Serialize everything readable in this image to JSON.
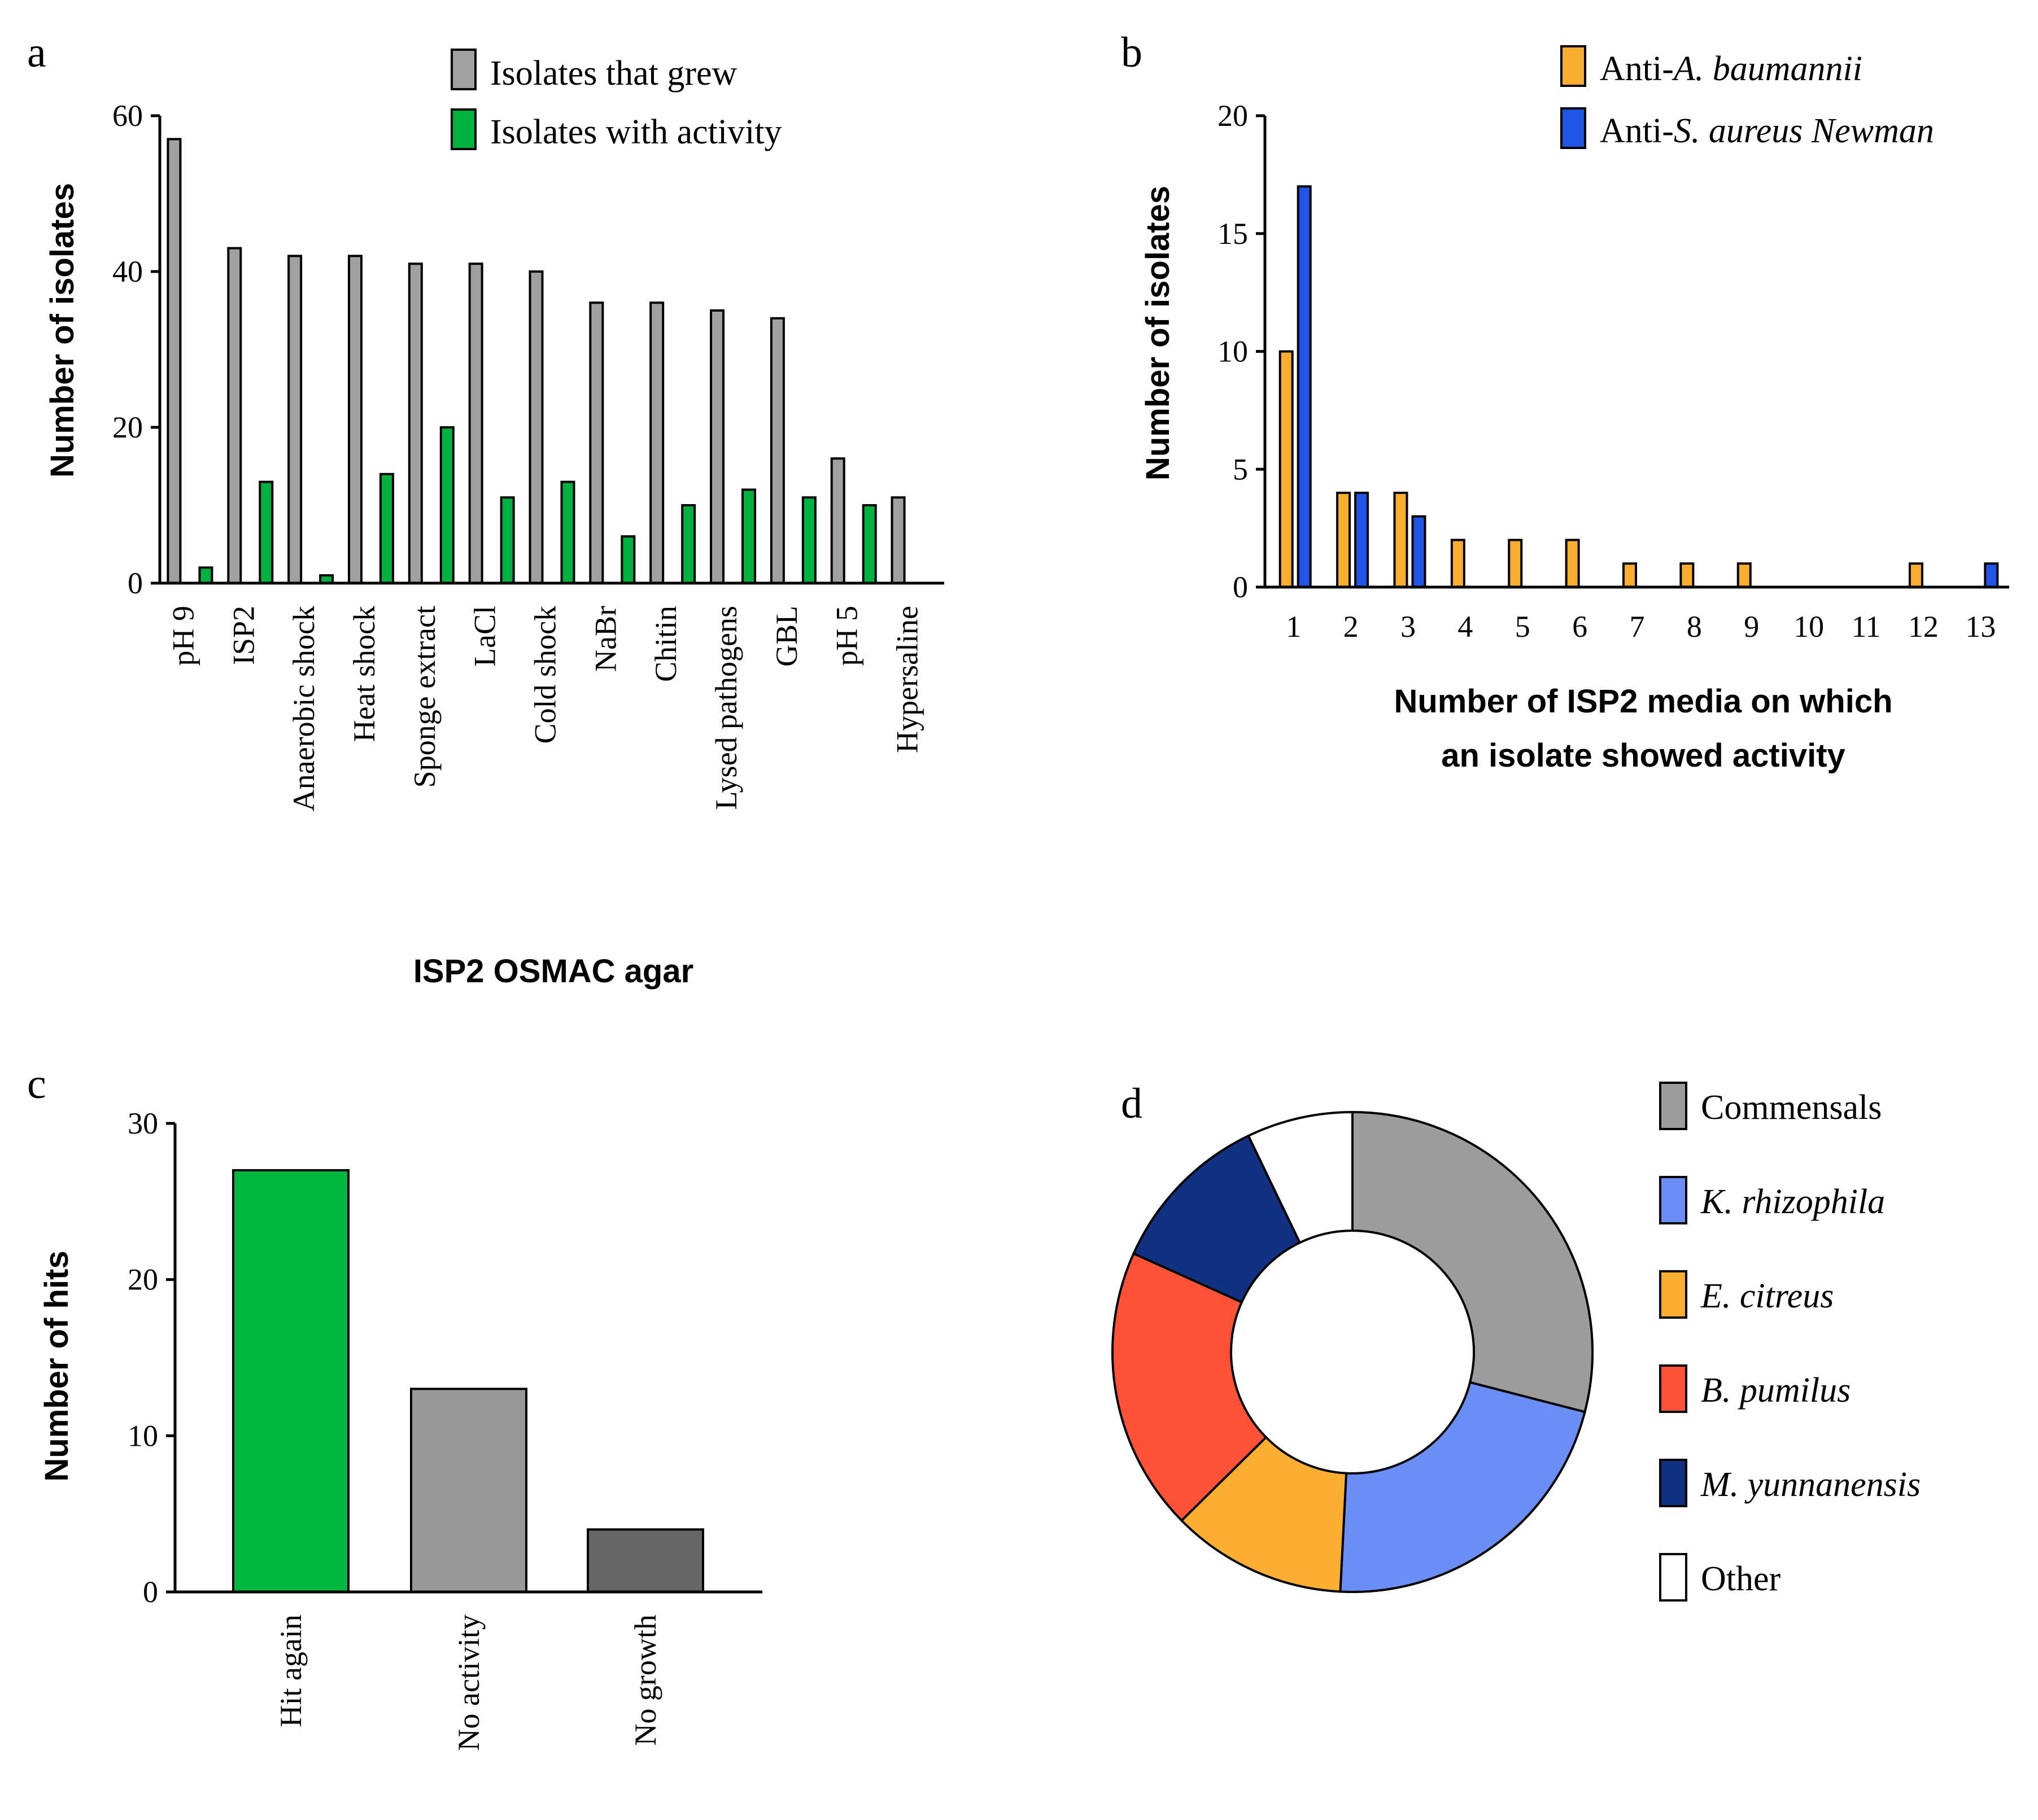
{
  "colors": {
    "gray": "#a0a0a0",
    "green": "#00b140",
    "orange": "#f9ad2e",
    "blue": "#1f55e6",
    "c_green": "#00b840",
    "c_gray": "#999999",
    "c_dark": "#666666",
    "d_gray": "#9c9c9c",
    "d_lightblue": "#6a8ef5",
    "d_orange": "#fbae2f",
    "d_red": "#fe5238",
    "d_navy": "#123182",
    "d_white": "#ffffff"
  },
  "chart_data": [
    {
      "panel": "a",
      "type": "bar",
      "categories": [
        "pH 9",
        "ISP2",
        "Anaerobic shock",
        "Heat shock",
        "Sponge extract",
        "LaCl",
        "Cold shock",
        "NaBr",
        "Chitin",
        "Lysed pathogens",
        "GBL",
        "pH 5",
        "Hypersaline"
      ],
      "series": [
        {
          "name": "Isolates that grew",
          "values": [
            57,
            43,
            42,
            42,
            41,
            41,
            40,
            36,
            36,
            35,
            34,
            16,
            11
          ]
        },
        {
          "name": "Isolates with activity",
          "values": [
            2,
            13,
            1,
            14,
            20,
            11,
            13,
            6,
            10,
            12,
            11,
            10,
            0
          ]
        }
      ],
      "xlabel": "ISP2 OSMAC agar",
      "ylabel": "Number of isolates",
      "ylim": [
        0,
        60
      ],
      "yticks": [
        "0",
        "20",
        "40",
        "60"
      ],
      "legend": "top-right"
    },
    {
      "panel": "b",
      "type": "bar",
      "categories": [
        "1",
        "2",
        "3",
        "4",
        "5",
        "6",
        "7",
        "8",
        "9",
        "10",
        "11",
        "12",
        "13"
      ],
      "series": [
        {
          "name_prefix": "Anti-",
          "name_italic": "A. baumannii",
          "values": [
            10,
            4,
            4,
            2,
            2,
            2,
            1,
            1,
            1,
            0,
            0,
            1,
            0
          ]
        },
        {
          "name_prefix": "Anti-",
          "name_italic": "S. aureus Newman",
          "values": [
            17,
            4,
            3,
            0,
            0,
            0,
            0,
            0,
            0,
            0,
            0,
            0,
            1
          ]
        }
      ],
      "xlabel_line1": "Number of ISP2 media on which",
      "xlabel_line2": "an isolate showed activity",
      "ylabel": "Number of isolates",
      "ylim": [
        0,
        20
      ],
      "yticks": [
        "0",
        "5",
        "10",
        "15",
        "20"
      ],
      "legend": "top-right"
    },
    {
      "panel": "c",
      "type": "bar",
      "categories": [
        "Hit again",
        "No activity",
        "No growth"
      ],
      "values": [
        27,
        13,
        4
      ],
      "ylabel": "Number of hits",
      "ylim": [
        0,
        30
      ],
      "yticks": [
        "0",
        "10",
        "20",
        "30"
      ]
    },
    {
      "panel": "d",
      "type": "pie",
      "labels": [
        "Commensals",
        "K. rhizophila",
        "E. citreus",
        "B. pumilus",
        "M. yunnanensis",
        "Other"
      ],
      "values": [
        30.5,
        22.9,
        12.4,
        20.1,
        11.7,
        7.5
      ],
      "donut": true,
      "legend": "right"
    }
  ],
  "panels": {
    "a": "a",
    "b": "b",
    "c": "c",
    "d": "d"
  }
}
